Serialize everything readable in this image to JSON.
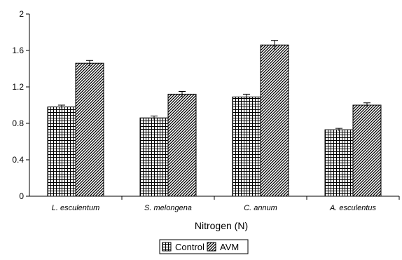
{
  "chart_data": {
    "type": "bar",
    "title": "",
    "xlabel": "Nitrogen (N)",
    "ylabel": "",
    "ylim": [
      0,
      2
    ],
    "yticks": [
      "0",
      "0.4",
      "0.8",
      "1.2",
      "1.6",
      "2"
    ],
    "grid": false,
    "legend_position": "bottom-center",
    "categories": [
      "L. esculentum",
      "S. melongena",
      "C. annum",
      "A. esculentus"
    ],
    "series": [
      {
        "name": "Control",
        "pattern": "grid-crosshatch",
        "values": [
          0.98,
          0.86,
          1.09,
          0.73
        ],
        "errors": [
          0.02,
          0.02,
          0.03,
          0.015
        ]
      },
      {
        "name": "AVM",
        "pattern": "diagonal-hatch",
        "values": [
          1.46,
          1.12,
          1.66,
          1.0
        ],
        "errors": [
          0.03,
          0.03,
          0.05,
          0.025
        ]
      }
    ]
  }
}
